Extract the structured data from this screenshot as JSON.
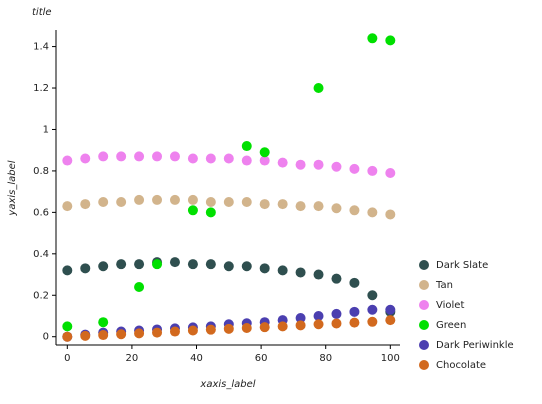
{
  "chart_data": {
    "type": "scatter",
    "title": "title",
    "x_label": "xaxis_label",
    "y_label": "yaxis_label",
    "xlim": [
      -3.5,
      103
    ],
    "ylim": [
      -0.04,
      1.48
    ],
    "xticks": [
      0,
      20,
      40,
      60,
      80,
      100
    ],
    "yticks": [
      0,
      0.2,
      0.4,
      0.6,
      0.8,
      1,
      1.2,
      1.4
    ],
    "series": [
      {
        "name": "Dark Slate",
        "color": "#2f4f4f",
        "x": [
          0,
          5.56,
          11.11,
          16.67,
          22.22,
          27.78,
          33.33,
          38.89,
          44.44,
          50,
          55.56,
          61.11,
          66.67,
          72.22,
          77.78,
          83.33,
          88.89,
          94.44,
          100
        ],
        "values": [
          0.32,
          0.33,
          0.34,
          0.35,
          0.35,
          0.36,
          0.36,
          0.35,
          0.35,
          0.34,
          0.34,
          0.33,
          0.32,
          0.31,
          0.3,
          0.28,
          0.26,
          0.2,
          0.12
        ]
      },
      {
        "name": "Tan",
        "color": "#d2b48c",
        "x": [
          0,
          5.56,
          11.11,
          16.67,
          22.22,
          27.78,
          33.33,
          38.89,
          44.44,
          50,
          55.56,
          61.11,
          66.67,
          72.22,
          77.78,
          83.33,
          88.89,
          94.44,
          100
        ],
        "values": [
          0.63,
          0.64,
          0.65,
          0.65,
          0.66,
          0.66,
          0.66,
          0.66,
          0.65,
          0.65,
          0.65,
          0.64,
          0.64,
          0.63,
          0.63,
          0.62,
          0.61,
          0.6,
          0.59
        ]
      },
      {
        "name": "Violet",
        "color": "#ee82ee",
        "x": [
          0,
          5.56,
          11.11,
          16.67,
          22.22,
          27.78,
          33.33,
          38.89,
          44.44,
          50,
          55.56,
          61.11,
          66.67,
          72.22,
          77.78,
          83.33,
          88.89,
          94.44,
          100
        ],
        "values": [
          0.85,
          0.86,
          0.87,
          0.87,
          0.87,
          0.87,
          0.87,
          0.86,
          0.86,
          0.86,
          0.85,
          0.85,
          0.84,
          0.83,
          0.83,
          0.82,
          0.81,
          0.8,
          0.79
        ]
      },
      {
        "name": "Green",
        "color": "#00e000",
        "x": [
          0,
          11.11,
          22.22,
          27.78,
          38.89,
          44.44,
          55.56,
          61.11,
          77.78,
          94.44,
          100
        ],
        "values": [
          0.05,
          0.07,
          0.24,
          0.35,
          0.61,
          0.6,
          0.92,
          0.89,
          1.2,
          1.44,
          1.43
        ]
      },
      {
        "name": "Dark Periwinkle",
        "color": "#4b3fb0",
        "x": [
          0,
          5.56,
          11.11,
          16.67,
          22.22,
          27.78,
          33.33,
          38.89,
          44.44,
          50,
          55.56,
          61.11,
          66.67,
          72.22,
          77.78,
          83.33,
          88.89,
          94.44,
          100
        ],
        "values": [
          0,
          0.01,
          0.02,
          0.025,
          0.03,
          0.035,
          0.04,
          0.045,
          0.05,
          0.06,
          0.065,
          0.07,
          0.08,
          0.09,
          0.1,
          0.11,
          0.12,
          0.13,
          0.13
        ]
      },
      {
        "name": "Chocolate",
        "color": "#d2691e",
        "x": [
          0,
          5.56,
          11.11,
          16.67,
          22.22,
          27.78,
          33.33,
          38.89,
          44.44,
          50,
          55.56,
          61.11,
          66.67,
          72.22,
          77.78,
          83.33,
          88.89,
          94.44,
          100
        ],
        "values": [
          0,
          0.004,
          0.008,
          0.012,
          0.016,
          0.02,
          0.025,
          0.03,
          0.034,
          0.038,
          0.042,
          0.046,
          0.05,
          0.055,
          0.06,
          0.064,
          0.068,
          0.072,
          0.08
        ]
      }
    ]
  }
}
